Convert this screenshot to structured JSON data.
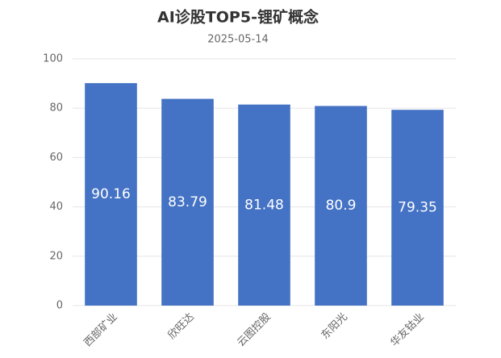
{
  "chart_data": {
    "type": "bar",
    "title": "AI诊股TOP5-锂矿概念",
    "subtitle": "2025-05-14",
    "categories": [
      "西部矿业",
      "欣旺达",
      "云图控股",
      "东阳光",
      "华友钴业"
    ],
    "values": [
      90.16,
      83.79,
      81.48,
      80.9,
      79.35
    ],
    "color": "#4472c4",
    "ylim": [
      0,
      100
    ],
    "yticks": [
      0,
      20,
      40,
      60,
      80,
      100
    ],
    "grid": true
  }
}
